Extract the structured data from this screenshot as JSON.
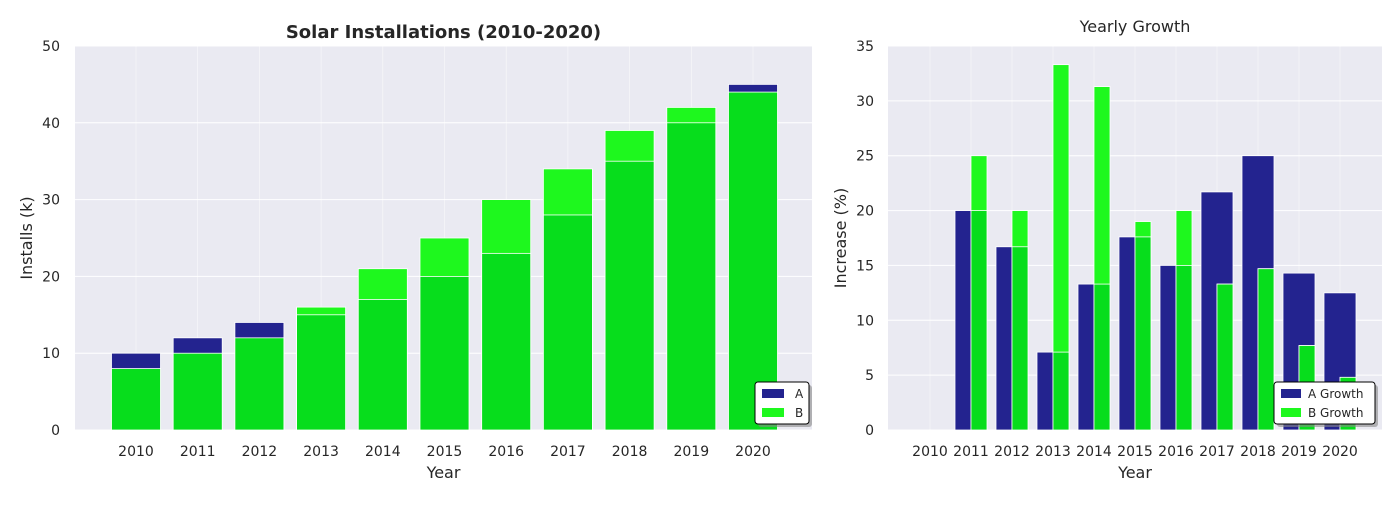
{
  "colors": {
    "a": "#23238f",
    "b": "#1ef81e",
    "overlap": "#07dd1c",
    "panel_bg": "#eaeaf2",
    "grid": "#ffffff"
  },
  "chart_data": [
    {
      "type": "bar",
      "title": "Solar Installations (2010-2020)",
      "xlabel": "Year",
      "ylabel": "Installs (k)",
      "ylim": [
        0,
        50
      ],
      "yticks": [
        "0",
        "10",
        "20",
        "30",
        "40",
        "50"
      ],
      "categories": [
        "2010",
        "2011",
        "2012",
        "2013",
        "2014",
        "2015",
        "2016",
        "2017",
        "2018",
        "2019",
        "2020"
      ],
      "series": [
        {
          "name": "A",
          "values": [
            10,
            12,
            14,
            15,
            17,
            20,
            23,
            28,
            35,
            40,
            45
          ]
        },
        {
          "name": "B",
          "values": [
            8,
            10,
            12,
            16,
            21,
            25,
            30,
            34,
            39,
            42,
            44
          ]
        }
      ],
      "grid": true,
      "legend": "lower-right"
    },
    {
      "type": "bar",
      "title": "Yearly Growth",
      "xlabel": "Year",
      "ylabel": "Increase (%)",
      "ylim": [
        0,
        35
      ],
      "yticks": [
        "0",
        "5",
        "10",
        "15",
        "20",
        "25",
        "30",
        "35"
      ],
      "categories": [
        "2010",
        "2011",
        "2012",
        "2013",
        "2014",
        "2015",
        "2016",
        "2017",
        "2018",
        "2019",
        "2020"
      ],
      "series": [
        {
          "name": "A Growth",
          "values": [
            0,
            20.0,
            16.7,
            7.1,
            13.3,
            17.6,
            15.0,
            21.7,
            25.0,
            14.3,
            12.5
          ]
        },
        {
          "name": "B Growth",
          "values": [
            0,
            25.0,
            20.0,
            33.3,
            31.3,
            19.0,
            20.0,
            13.3,
            14.7,
            7.7,
            4.8
          ]
        }
      ],
      "grid": true,
      "legend": "lower-right"
    }
  ]
}
